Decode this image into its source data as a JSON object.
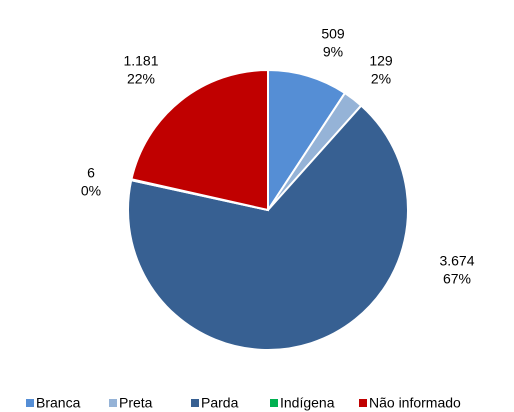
{
  "chart_data": {
    "type": "pie",
    "categories": [
      "Branca",
      "Preta",
      "Parda",
      "Indígena",
      "Não informado"
    ],
    "values": [
      509,
      129,
      3674,
      6,
      1181
    ],
    "value_labels": [
      "509",
      "129",
      "3.674",
      "6",
      "1.181"
    ],
    "percent_labels": [
      "9%",
      "2%",
      "67%",
      "0%",
      "22%"
    ],
    "colors": [
      "#558ed5",
      "#95b3d7",
      "#376092",
      "#00b050",
      "#c00000"
    ],
    "legend": "bottom"
  }
}
